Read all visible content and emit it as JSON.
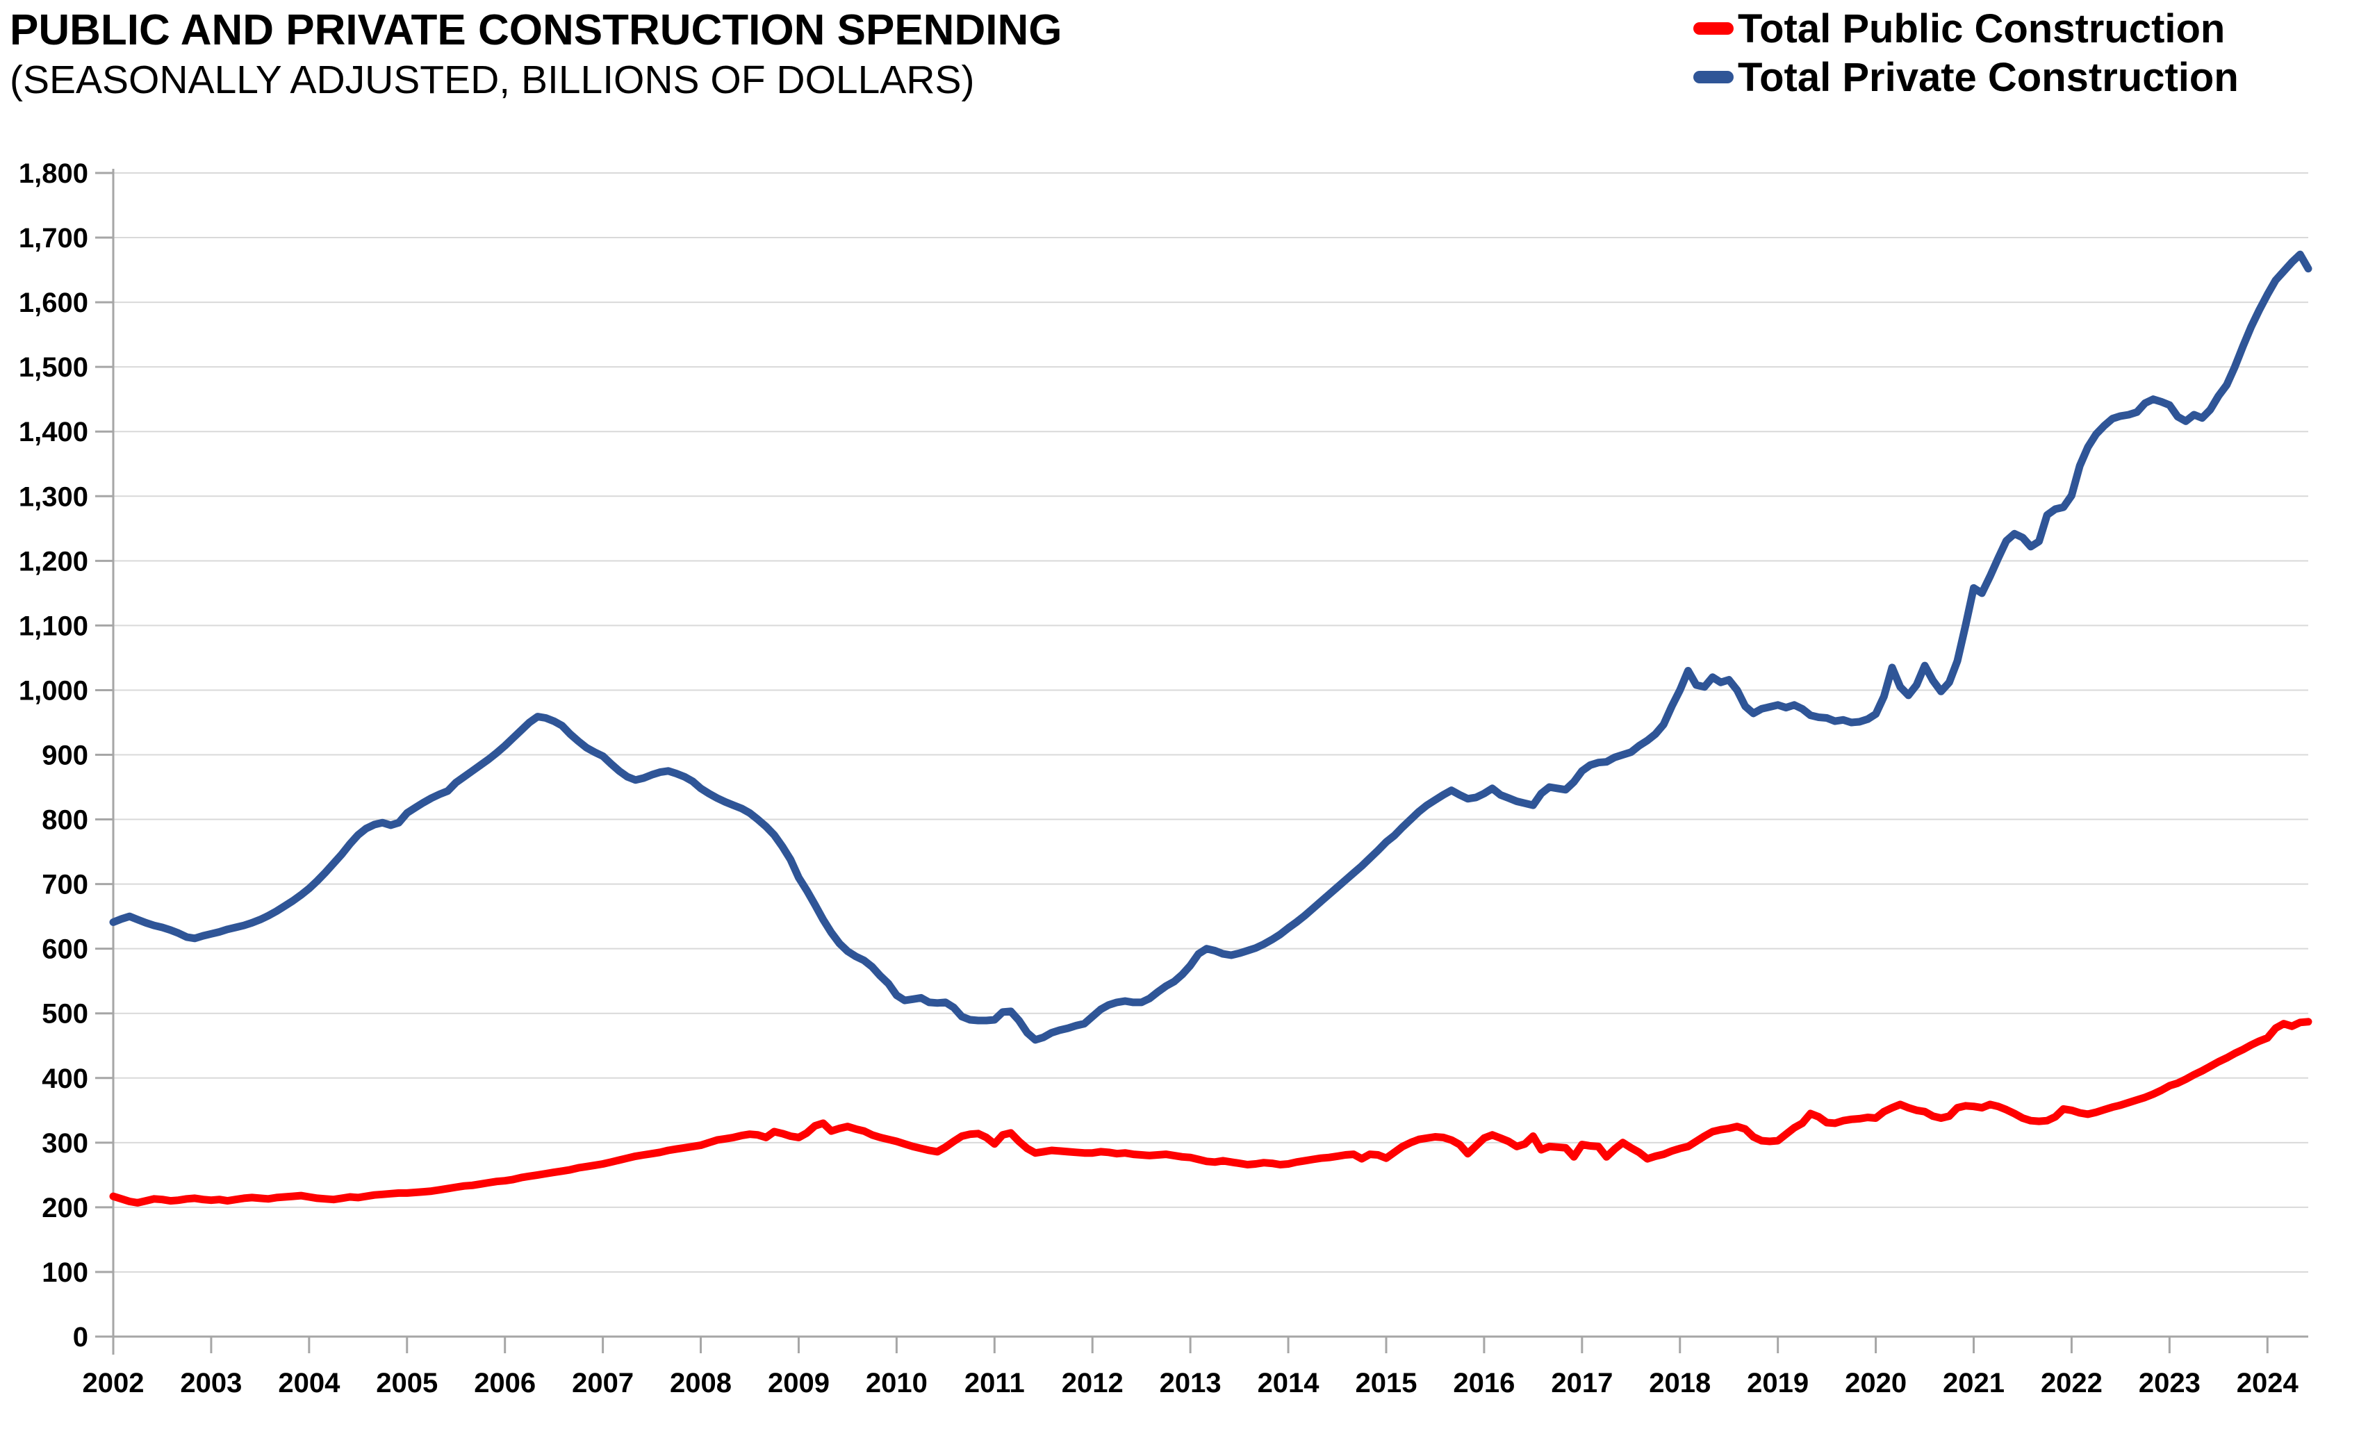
{
  "header": {
    "title": "PUBLIC AND PRIVATE CONSTRUCTION SPENDING",
    "subtitle": "(SEASONALLY ADJUSTED, BILLIONS OF DOLLARS)"
  },
  "legend": [
    {
      "label": "Total Public Construction",
      "color": "#FF0000"
    },
    {
      "label": "Total Private Construction",
      "color": "#2F5597"
    }
  ],
  "chart_data": {
    "type": "line",
    "title": "PUBLIC AND PRIVATE CONSTRUCTION SPENDING",
    "subtitle": "(SEASONALLY ADJUSTED, BILLIONS OF DOLLARS)",
    "x_unit": "month",
    "x_start": "2002-01",
    "x_end": "2024-06",
    "x_tick_labels": [
      "2002",
      "2003",
      "2004",
      "2005",
      "2006",
      "2007",
      "2008",
      "2009",
      "2010",
      "2011",
      "2012",
      "2013",
      "2014",
      "2015",
      "2016",
      "2017",
      "2018",
      "2019",
      "2020",
      "2021",
      "2022",
      "2023",
      "2024"
    ],
    "ylim": [
      0,
      1800
    ],
    "y_tick_step": 100,
    "grid": "horizontal",
    "legend_position": "top-right",
    "grid_color": "#D9D9D9",
    "axis_color": "#A6A6A6",
    "series": [
      {
        "name": "Total Public Construction",
        "color": "#FF0000",
        "values": [
          217,
          213,
          209,
          207,
          210,
          213,
          212,
          210,
          211,
          213,
          214,
          212,
          211,
          212,
          210,
          212,
          214,
          215,
          214,
          213,
          215,
          216,
          217,
          218,
          216,
          214,
          213,
          212,
          214,
          216,
          215,
          217,
          219,
          220,
          221,
          222,
          222,
          223,
          224,
          225,
          227,
          229,
          231,
          233,
          234,
          236,
          238,
          240,
          241,
          243,
          246,
          248,
          250,
          252,
          254,
          256,
          258,
          261,
          263,
          265,
          267,
          270,
          273,
          276,
          279,
          281,
          283,
          285,
          288,
          290,
          292,
          294,
          296,
          300,
          304,
          306,
          308,
          311,
          313,
          312,
          308,
          317,
          314,
          310,
          308,
          315,
          326,
          330,
          318,
          322,
          325,
          321,
          318,
          312,
          308,
          305,
          302,
          298,
          294,
          291,
          288,
          286,
          293,
          302,
          310,
          313,
          314,
          308,
          298,
          312,
          315,
          302,
          291,
          284,
          286,
          288,
          287,
          286,
          285,
          284,
          284,
          286,
          285,
          283,
          284,
          282,
          281,
          280,
          281,
          282,
          280,
          278,
          277,
          274,
          271,
          270,
          272,
          270,
          268,
          266,
          267,
          269,
          268,
          266,
          267,
          270,
          272,
          274,
          276,
          277,
          279,
          281,
          282,
          275,
          282,
          281,
          276,
          285,
          294,
          300,
          305,
          307,
          309,
          308,
          304,
          297,
          283,
          295,
          307,
          312,
          307,
          302,
          294,
          298,
          310,
          289,
          294,
          293,
          292,
          278,
          297,
          295,
          294,
          278,
          290,
          300,
          292,
          285,
          275,
          279,
          282,
          287,
          291,
          294,
          302,
          310,
          317,
          320,
          322,
          325,
          321,
          309,
          303,
          302,
          303,
          313,
          323,
          330,
          345,
          340,
          331,
          330,
          334,
          336,
          337,
          339,
          338,
          348,
          354,
          359,
          354,
          350,
          348,
          341,
          338,
          341,
          354,
          357,
          356,
          354,
          359,
          356,
          351,
          345,
          338,
          334,
          333,
          334,
          340,
          352,
          350,
          346,
          344,
          347,
          351,
          355,
          358,
          362,
          366,
          370,
          375,
          381,
          388,
          392,
          398,
          405,
          411,
          418,
          425,
          431,
          438,
          444,
          451,
          457,
          462,
          477,
          484,
          480,
          486,
          487
        ]
      },
      {
        "name": "Total Private Construction",
        "color": "#2F5597",
        "values": [
          641,
          646,
          650,
          645,
          640,
          636,
          633,
          629,
          624,
          618,
          616,
          620,
          623,
          626,
          630,
          633,
          636,
          640,
          645,
          651,
          658,
          666,
          674,
          683,
          693,
          705,
          718,
          732,
          746,
          762,
          776,
          786,
          792,
          795,
          791,
          795,
          810,
          818,
          826,
          833,
          839,
          844,
          857,
          866,
          875,
          884,
          893,
          903,
          914,
          926,
          938,
          950,
          959,
          957,
          952,
          945,
          932,
          921,
          911,
          904,
          898,
          886,
          875,
          866,
          861,
          864,
          869,
          873,
          875,
          871,
          866,
          859,
          848,
          840,
          833,
          827,
          822,
          817,
          810,
          800,
          789,
          776,
          758,
          738,
          710,
          690,
          668,
          645,
          625,
          608,
          596,
          588,
          582,
          572,
          558,
          546,
          528,
          520,
          522,
          524,
          517,
          516,
          517,
          509,
          495,
          490,
          489,
          489,
          490,
          502,
          503,
          489,
          470,
          459,
          463,
          470,
          474,
          477,
          481,
          484,
          495,
          506,
          513,
          517,
          519,
          517,
          517,
          523,
          533,
          542,
          549,
          560,
          574,
          592,
          600,
          597,
          592,
          590,
          593,
          597,
          601,
          607,
          614,
          622,
          632,
          641,
          651,
          662,
          673,
          684,
          695,
          706,
          717,
          728,
          740,
          752,
          765,
          775,
          788,
          800,
          812,
          822,
          830,
          838,
          845,
          838,
          832,
          834,
          840,
          848,
          838,
          833,
          828,
          825,
          822,
          840,
          850,
          848,
          846,
          858,
          875,
          884,
          888,
          889,
          896,
          900,
          904,
          914,
          922,
          932,
          947,
          975,
          1000,
          1030,
          1008,
          1005,
          1020,
          1012,
          1016,
          1000,
          975,
          964,
          971,
          974,
          977,
          973,
          977,
          971,
          961,
          958,
          957,
          952,
          954,
          950,
          951,
          955,
          963,
          990,
          1035,
          1005,
          992,
          1008,
          1038,
          1015,
          998,
          1012,
          1045,
          1100,
          1158,
          1150,
          1176,
          1204,
          1231,
          1242,
          1236,
          1222,
          1230,
          1271,
          1280,
          1283,
          1301,
          1347,
          1376,
          1396,
          1409,
          1420,
          1424,
          1426,
          1430,
          1444,
          1450,
          1446,
          1441,
          1423,
          1416,
          1426,
          1421,
          1434,
          1455,
          1472,
          1500,
          1532,
          1562,
          1588,
          1612,
          1634,
          1648,
          1662,
          1674,
          1652
        ]
      }
    ]
  }
}
